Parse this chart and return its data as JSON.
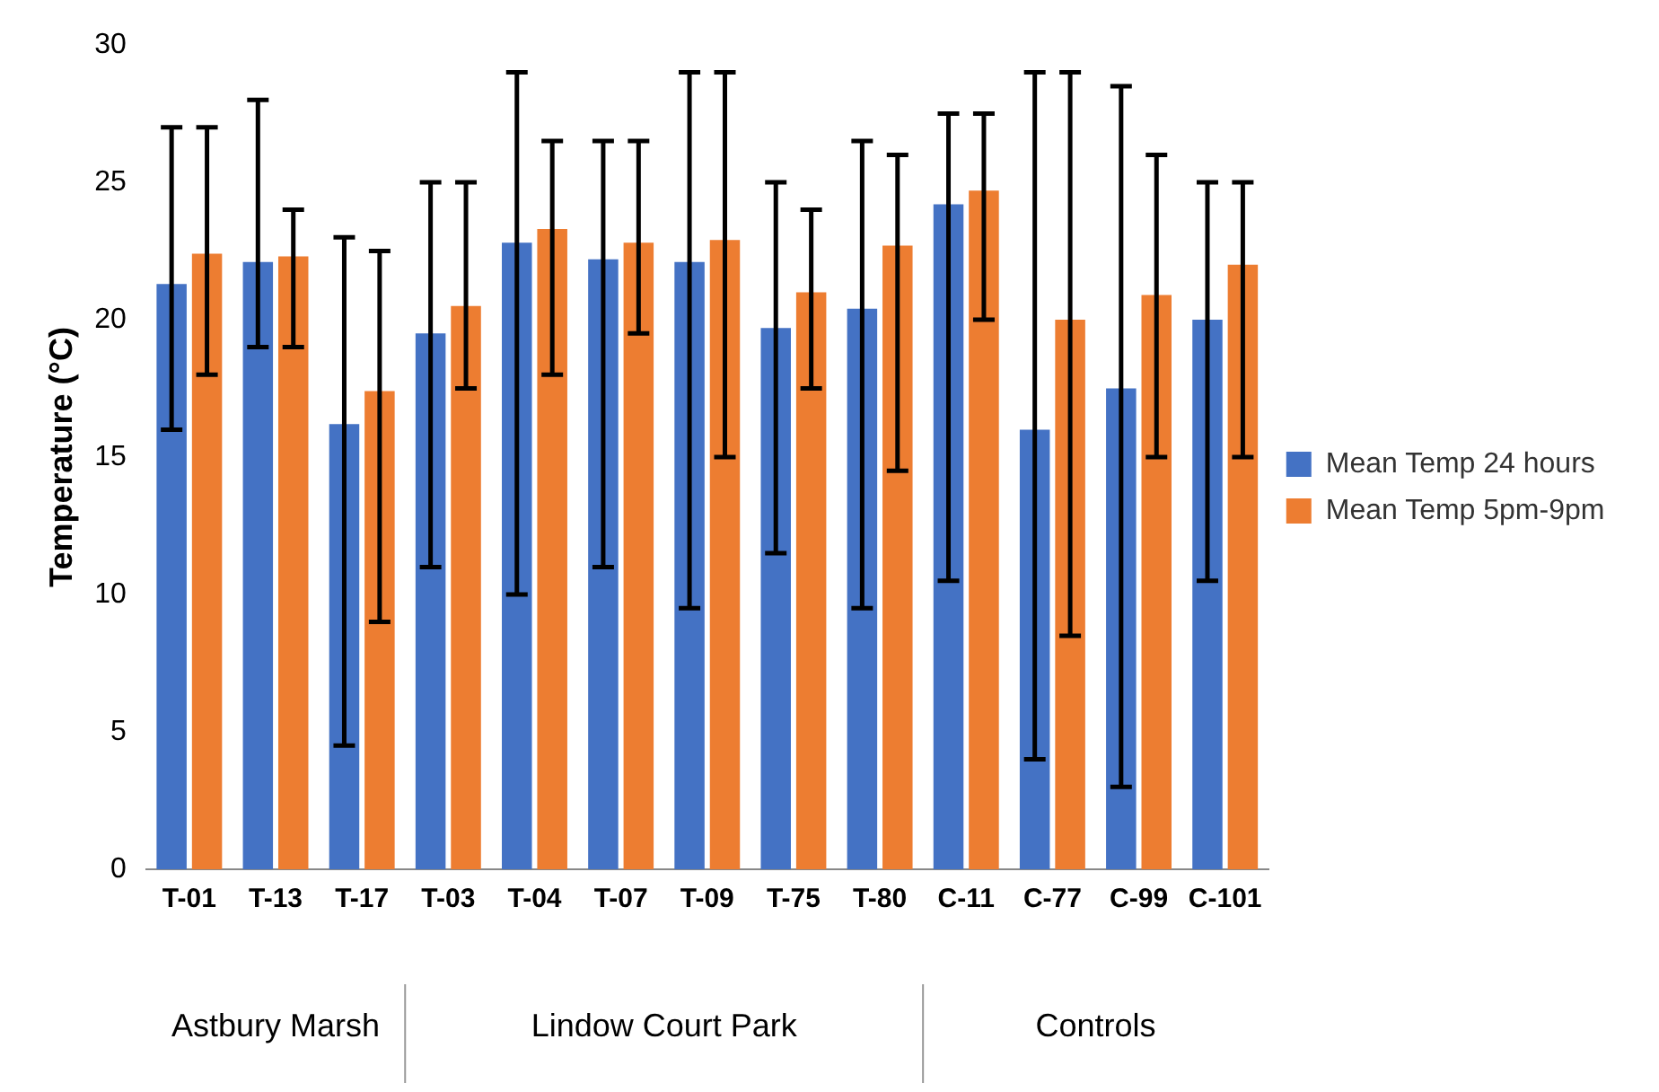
{
  "chart_data": {
    "type": "bar",
    "ylabel": "Temperature (°C)",
    "categories": [
      "T-01",
      "T-13",
      "T-17",
      "T-03",
      "T-04",
      "T-07",
      "T-09",
      "T-75",
      "T-80",
      "C-11",
      "C-77",
      "C-99",
      "C-101"
    ],
    "series": [
      {
        "name": "Mean Temp 24 hours",
        "color": "#4472c4",
        "values": [
          21.3,
          22.1,
          16.2,
          19.5,
          22.8,
          22.2,
          22.1,
          19.7,
          20.4,
          24.2,
          16,
          17.5,
          20
        ],
        "errors": [
          [
            16,
            27
          ],
          [
            19,
            28
          ],
          [
            4.5,
            23
          ],
          [
            11,
            25
          ],
          [
            10,
            29
          ],
          [
            11,
            26.5
          ],
          [
            9.5,
            29
          ],
          [
            11.5,
            25
          ],
          [
            9.5,
            26.5
          ],
          [
            10.5,
            27.5
          ],
          [
            4,
            29
          ],
          [
            3,
            28.5
          ],
          [
            10.5,
            25
          ]
        ]
      },
      {
        "name": "Mean Temp 5pm-9pm",
        "color": "#ed7d31",
        "values": [
          22.4,
          22.3,
          17.4,
          20.5,
          23.3,
          22.8,
          22.9,
          21,
          22.7,
          24.7,
          20,
          20.9,
          22
        ],
        "errors": [
          [
            18,
            27
          ],
          [
            19,
            24
          ],
          [
            9,
            22.5
          ],
          [
            17.5,
            25
          ],
          [
            18,
            26.5
          ],
          [
            19.5,
            26.5
          ],
          [
            15,
            29
          ],
          [
            17.5,
            24
          ],
          [
            14.5,
            26
          ],
          [
            20,
            27.5
          ],
          [
            8.5,
            29
          ],
          [
            15,
            26
          ],
          [
            15,
            25
          ]
        ]
      }
    ],
    "ylim": [
      0,
      30
    ],
    "yticks": [
      0,
      5,
      10,
      15,
      20,
      25,
      30
    ],
    "grid": false,
    "legend": "right",
    "annotations": [
      "Astbury Marsh",
      "Lindow Court Park",
      "Controls"
    ]
  }
}
